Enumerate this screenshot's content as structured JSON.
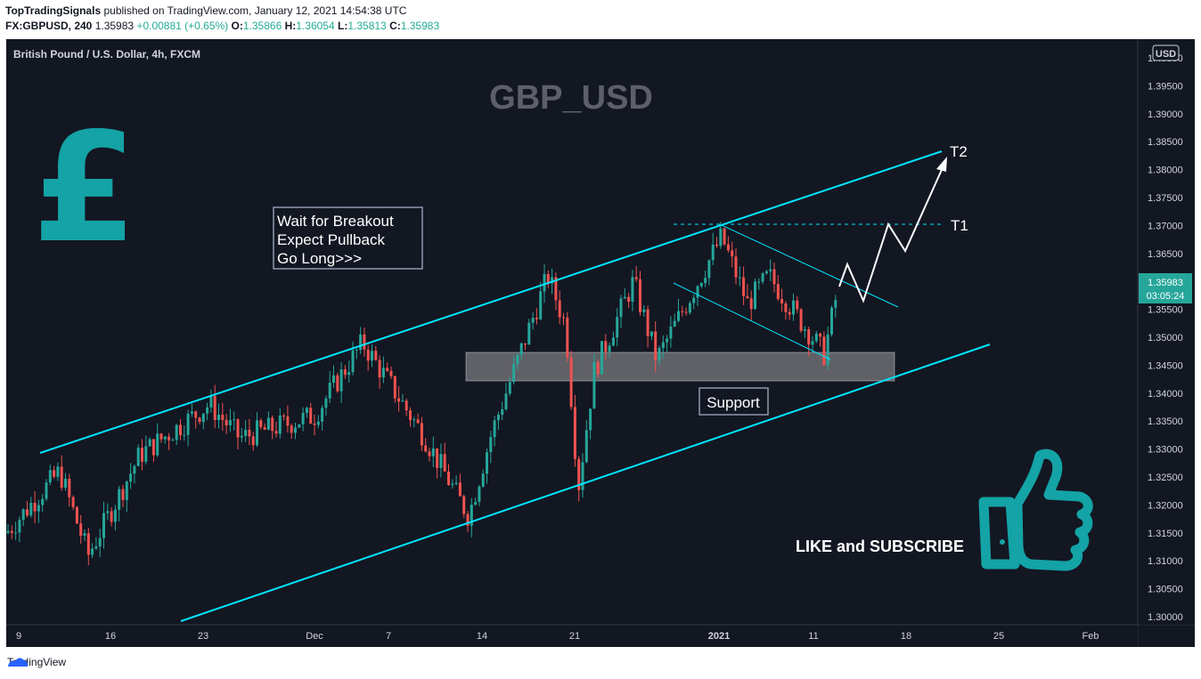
{
  "header": {
    "author": "TopTradingSignals",
    "published_text": "published on TradingView.com, January 12, 2021 14:54:38 UTC",
    "symbol": "FX:GBPUSD, 240",
    "last": "1.35983",
    "change": "+0.00881 (+0.65%)",
    "o_label": "O:",
    "o": "1.35866",
    "h_label": "H:",
    "h": "1.36054",
    "l_label": "L:",
    "l": "1.35813",
    "c_label": "C:",
    "c": "1.35983"
  },
  "chart": {
    "instrument": "British Pound / U.S. Dollar, 4h, FXCM",
    "watermark": "GBP_USD",
    "currency_badge": "USD",
    "price_tag": "1.35983",
    "countdown": "03:05:24",
    "annotation_lines": [
      "Wait for Breakout",
      "Expect Pullback",
      "Go Long>>>"
    ],
    "support_label": "Support",
    "t1_label": "T1",
    "t2_label": "T2",
    "cta": "LIKE and SUBSCRIBE",
    "colors": {
      "background": "#131722",
      "up": "#26a69a",
      "down": "#ef5350",
      "channel": "#00e5ff",
      "support_zone": "#9e9e9e"
    }
  },
  "footer": {
    "brand": "TradingView"
  },
  "chart_data": {
    "type": "candlestick",
    "title": "British Pound / U.S. Dollar, 4h, FXCM",
    "ylim": [
      1.3,
      1.405
    ],
    "y_ticks": [
      "1.40000",
      "1.39500",
      "1.39000",
      "1.38500",
      "1.38000",
      "1.37500",
      "1.37000",
      "1.36500",
      "1.36000",
      "1.35500",
      "1.35000",
      "1.34500",
      "1.34000",
      "1.33500",
      "1.33000",
      "1.32500",
      "1.32000",
      "1.31500",
      "1.31000",
      "1.30500",
      "1.30000"
    ],
    "x_ticks": [
      "9",
      "16",
      "23",
      "Dec",
      "7",
      "14",
      "21",
      "2021",
      "11",
      "18",
      "25",
      "Feb"
    ],
    "price_path": [
      {
        "x": "9",
        "y": 1.315
      },
      {
        "x": "12",
        "y": 1.326
      },
      {
        "x": "16",
        "y": 1.311
      },
      {
        "x": "20",
        "y": 1.329
      },
      {
        "x": "23",
        "y": 1.338
      },
      {
        "x": "27",
        "y": 1.332
      },
      {
        "x": "Dec",
        "y": 1.336
      },
      {
        "x": "4",
        "y": 1.349
      },
      {
        "x": "7",
        "y": 1.343
      },
      {
        "x": "9",
        "y": 1.332
      },
      {
        "x": "11",
        "y": 1.318
      },
      {
        "x": "14",
        "y": 1.333
      },
      {
        "x": "17",
        "y": 1.361
      },
      {
        "x": "19",
        "y": 1.352
      },
      {
        "x": "21",
        "y": 1.323
      },
      {
        "x": "23",
        "y": 1.344
      },
      {
        "x": "25",
        "y": 1.36
      },
      {
        "x": "29",
        "y": 1.346
      },
      {
        "x": "2021",
        "y": 1.368
      },
      {
        "x": "5",
        "y": 1.356
      },
      {
        "x": "8",
        "y": 1.361
      },
      {
        "x": "11",
        "y": 1.347
      },
      {
        "x": "12",
        "y": 1.3598
      }
    ],
    "levels": {
      "support_zone": [
        1.3425,
        1.3475
      ],
      "t1": 1.3705,
      "t2": 1.3835,
      "last_price": 1.35983
    }
  }
}
